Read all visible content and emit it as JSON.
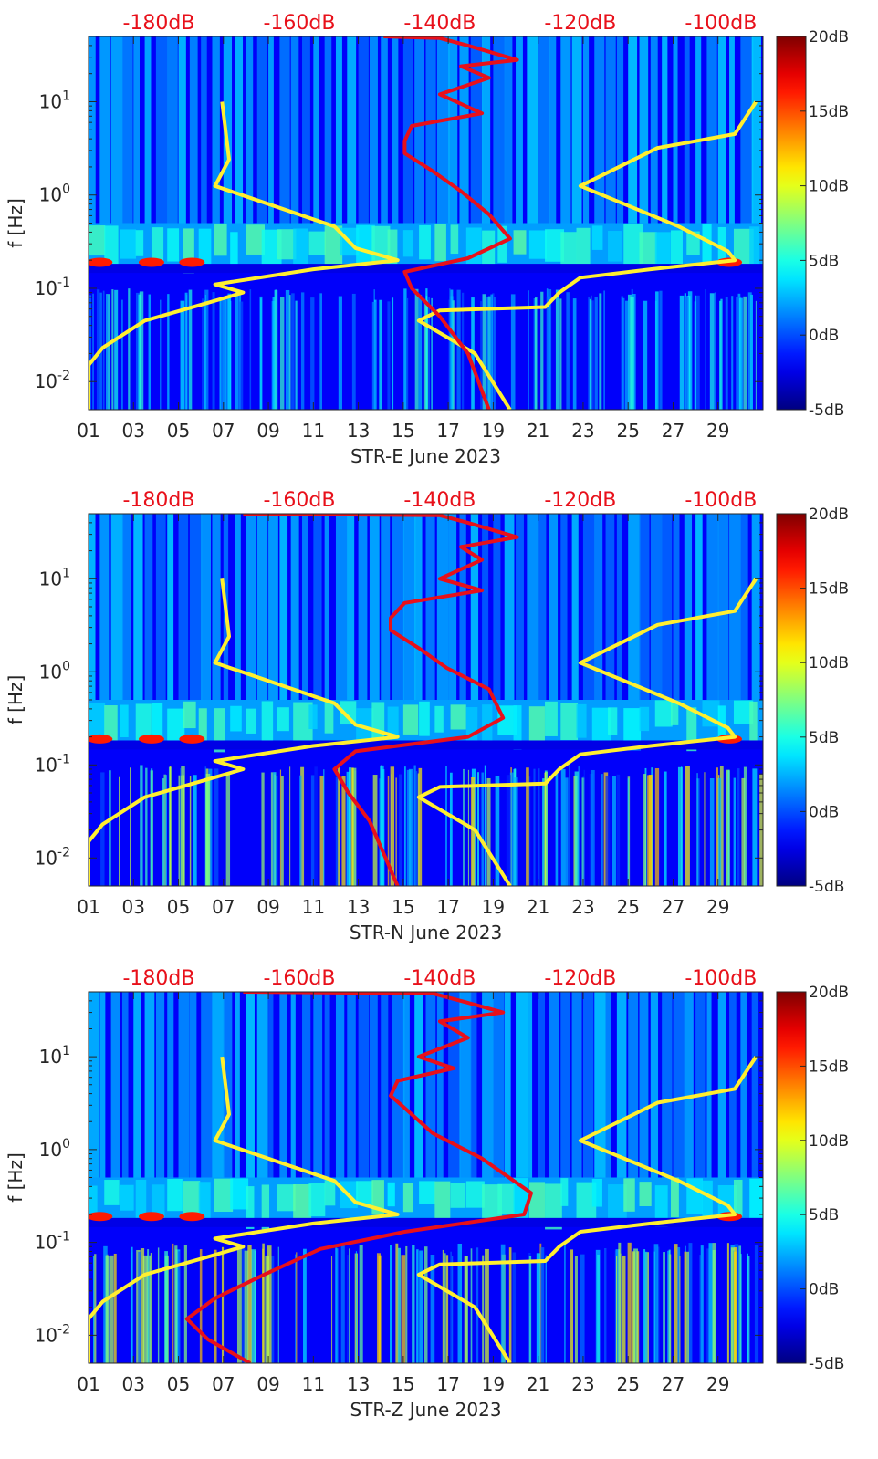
{
  "figure": {
    "colormap": "jet",
    "colors": {
      "yellow_curve": "#ffef30",
      "red_curve": "#e8101a",
      "top_axis_text": "#e8101a"
    }
  },
  "chart_data": [
    {
      "type": "heatmap",
      "name": "STR-E",
      "xlabel": "STR-E June 2023",
      "ylabel": "f [Hz]",
      "x_ticks": [
        "01",
        "03",
        "05",
        "07",
        "09",
        "11",
        "13",
        "15",
        "17",
        "19",
        "21",
        "23",
        "25",
        "27",
        "29"
      ],
      "y_ticks": [
        "10^-2",
        "10^-1",
        "10^0",
        "10^1"
      ],
      "y_scale": "log",
      "ylim_hz": [
        0.005,
        50
      ],
      "xlim_day": [
        1,
        31
      ],
      "top_axis_ticks": [
        "-180dB",
        "-160dB",
        "-140dB",
        "-120dB",
        "-100dB"
      ],
      "top_axis_range_db": [
        -190,
        -94
      ],
      "colorbar": {
        "ticks": [
          "20dB",
          "15dB",
          "10dB",
          "5dB",
          "0dB",
          "-5dB"
        ],
        "range_db": [
          -5,
          20
        ]
      },
      "series": [
        {
          "color": "yellow",
          "points": [
            [
              -171,
              10
            ],
            [
              -170,
              2.4
            ],
            [
              -172,
              1.25
            ],
            [
              -155,
              0.46
            ],
            [
              -152,
              0.27
            ],
            [
              -146,
              0.2
            ],
            [
              -158,
              0.16
            ],
            [
              -172,
              0.11
            ],
            [
              -168,
              0.09
            ],
            [
              -173,
              0.07
            ],
            [
              -182,
              0.045
            ],
            [
              -188,
              0.023
            ],
            [
              -190,
              0.015
            ],
            [
              -190,
              0.005
            ]
          ]
        },
        {
          "color": "yellow",
          "points": [
            [
              -95,
              10
            ],
            [
              -98,
              4.5
            ],
            [
              -109,
              3.2
            ],
            [
              -120,
              1.25
            ],
            [
              -106,
              0.46
            ],
            [
              -99,
              0.25
            ],
            [
              -98,
              0.2
            ],
            [
              -110,
              0.16
            ],
            [
              -120,
              0.13
            ],
            [
              -123,
              0.09
            ],
            [
              -125,
              0.063
            ],
            [
              -140,
              0.058
            ],
            [
              -143,
              0.045
            ],
            [
              -135,
              0.02
            ],
            [
              -130,
              0.005
            ]
          ]
        },
        {
          "color": "red",
          "points": [
            [
              -148,
              50
            ],
            [
              -140,
              48
            ],
            [
              -136,
              40
            ],
            [
              -129,
              28
            ],
            [
              -137,
              24
            ],
            [
              -133,
              18
            ],
            [
              -140,
              12
            ],
            [
              -134,
              7.5
            ],
            [
              -144,
              5.5
            ],
            [
              -145,
              3.8
            ],
            [
              -145,
              2.8
            ],
            [
              -141,
              1.8
            ],
            [
              -137,
              1.1
            ],
            [
              -133,
              0.62
            ],
            [
              -130,
              0.34
            ],
            [
              -136,
              0.21
            ],
            [
              -145,
              0.15
            ],
            [
              -144,
              0.1
            ],
            [
              -140,
              0.05
            ],
            [
              -136,
              0.02
            ],
            [
              -133,
              0.005
            ]
          ]
        }
      ]
    },
    {
      "type": "heatmap",
      "name": "STR-N",
      "xlabel": "STR-N June 2023",
      "ylabel": "f [Hz]",
      "x_ticks": [
        "01",
        "03",
        "05",
        "07",
        "09",
        "11",
        "13",
        "15",
        "17",
        "19",
        "21",
        "23",
        "25",
        "27",
        "29"
      ],
      "y_ticks": [
        "10^-2",
        "10^-1",
        "10^0",
        "10^1"
      ],
      "y_scale": "log",
      "ylim_hz": [
        0.005,
        50
      ],
      "xlim_day": [
        1,
        31
      ],
      "top_axis_ticks": [
        "-180dB",
        "-160dB",
        "-140dB",
        "-120dB",
        "-100dB"
      ],
      "top_axis_range_db": [
        -190,
        -94
      ],
      "colorbar": {
        "ticks": [
          "20dB",
          "15dB",
          "10dB",
          "5dB",
          "0dB",
          "-5dB"
        ],
        "range_db": [
          -5,
          20
        ]
      },
      "series": [
        {
          "color": "yellow",
          "points": [
            [
              -171,
              10
            ],
            [
              -170,
              2.4
            ],
            [
              -172,
              1.25
            ],
            [
              -155,
              0.46
            ],
            [
              -152,
              0.27
            ],
            [
              -146,
              0.2
            ],
            [
              -158,
              0.16
            ],
            [
              -172,
              0.11
            ],
            [
              -168,
              0.09
            ],
            [
              -173,
              0.07
            ],
            [
              -182,
              0.045
            ],
            [
              -188,
              0.023
            ],
            [
              -190,
              0.015
            ],
            [
              -190,
              0.005
            ]
          ]
        },
        {
          "color": "yellow",
          "points": [
            [
              -95,
              10
            ],
            [
              -98,
              4.5
            ],
            [
              -109,
              3.2
            ],
            [
              -120,
              1.25
            ],
            [
              -106,
              0.46
            ],
            [
              -99,
              0.25
            ],
            [
              -98,
              0.2
            ],
            [
              -110,
              0.16
            ],
            [
              -120,
              0.13
            ],
            [
              -123,
              0.09
            ],
            [
              -125,
              0.063
            ],
            [
              -140,
              0.058
            ],
            [
              -143,
              0.045
            ],
            [
              -135,
              0.02
            ],
            [
              -130,
              0.005
            ]
          ]
        },
        {
          "color": "red",
          "points": [
            [
              -168,
              50
            ],
            [
              -140,
              48
            ],
            [
              -136,
              40
            ],
            [
              -129,
              28
            ],
            [
              -137,
              22
            ],
            [
              -134,
              16
            ],
            [
              -140,
              10
            ],
            [
              -134,
              7.5
            ],
            [
              -145,
              5.5
            ],
            [
              -147,
              3.8
            ],
            [
              -147,
              2.8
            ],
            [
              -143,
              1.8
            ],
            [
              -139,
              1.1
            ],
            [
              -133,
              0.65
            ],
            [
              -131,
              0.32
            ],
            [
              -136,
              0.2
            ],
            [
              -152,
              0.14
            ],
            [
              -155,
              0.09
            ],
            [
              -153,
              0.05
            ],
            [
              -150,
              0.025
            ],
            [
              -146,
              0.005
            ]
          ]
        }
      ]
    },
    {
      "type": "heatmap",
      "name": "STR-Z",
      "xlabel": "STR-Z June 2023",
      "ylabel": "f [Hz]",
      "x_ticks": [
        "01",
        "03",
        "05",
        "07",
        "09",
        "11",
        "13",
        "15",
        "17",
        "19",
        "21",
        "23",
        "25",
        "27",
        "29"
      ],
      "y_ticks": [
        "10^-2",
        "10^-1",
        "10^0",
        "10^1"
      ],
      "y_scale": "log",
      "ylim_hz": [
        0.005,
        50
      ],
      "xlim_day": [
        1,
        31
      ],
      "top_axis_ticks": [
        "-180dB",
        "-160dB",
        "-140dB",
        "-120dB",
        "-100dB"
      ],
      "top_axis_range_db": [
        -190,
        -94
      ],
      "colorbar": {
        "ticks": [
          "20dB",
          "15dB",
          "10dB",
          "5dB",
          "0dB",
          "-5dB"
        ],
        "range_db": [
          -5,
          20
        ]
      },
      "series": [
        {
          "color": "yellow",
          "points": [
            [
              -171,
              10
            ],
            [
              -170,
              2.4
            ],
            [
              -172,
              1.25
            ],
            [
              -155,
              0.46
            ],
            [
              -152,
              0.27
            ],
            [
              -146,
              0.2
            ],
            [
              -158,
              0.16
            ],
            [
              -172,
              0.11
            ],
            [
              -168,
              0.09
            ],
            [
              -173,
              0.07
            ],
            [
              -182,
              0.045
            ],
            [
              -188,
              0.023
            ],
            [
              -190,
              0.015
            ],
            [
              -190,
              0.005
            ]
          ]
        },
        {
          "color": "yellow",
          "points": [
            [
              -95,
              10
            ],
            [
              -98,
              4.5
            ],
            [
              -109,
              3.2
            ],
            [
              -120,
              1.25
            ],
            [
              -106,
              0.46
            ],
            [
              -99,
              0.25
            ],
            [
              -98,
              0.2
            ],
            [
              -110,
              0.16
            ],
            [
              -120,
              0.13
            ],
            [
              -123,
              0.09
            ],
            [
              -125,
              0.063
            ],
            [
              -140,
              0.058
            ],
            [
              -143,
              0.045
            ],
            [
              -135,
              0.02
            ],
            [
              -130,
              0.005
            ]
          ]
        },
        {
          "color": "red",
          "points": [
            [
              -168,
              50
            ],
            [
              -141,
              48
            ],
            [
              -137,
              40
            ],
            [
              -131,
              30
            ],
            [
              -140,
              24
            ],
            [
              -136,
              16
            ],
            [
              -143,
              10
            ],
            [
              -138,
              7.5
            ],
            [
              -146,
              5.5
            ],
            [
              -147,
              3.8
            ],
            [
              -145,
              2.8
            ],
            [
              -141,
              1.5
            ],
            [
              -134,
              0.8
            ],
            [
              -127,
              0.34
            ],
            [
              -128,
              0.2
            ],
            [
              -145,
              0.13
            ],
            [
              -157,
              0.085
            ],
            [
              -165,
              0.045
            ],
            [
              -172,
              0.025
            ],
            [
              -176,
              0.015
            ],
            [
              -173,
              0.009
            ],
            [
              -167,
              0.005
            ]
          ]
        }
      ]
    }
  ]
}
